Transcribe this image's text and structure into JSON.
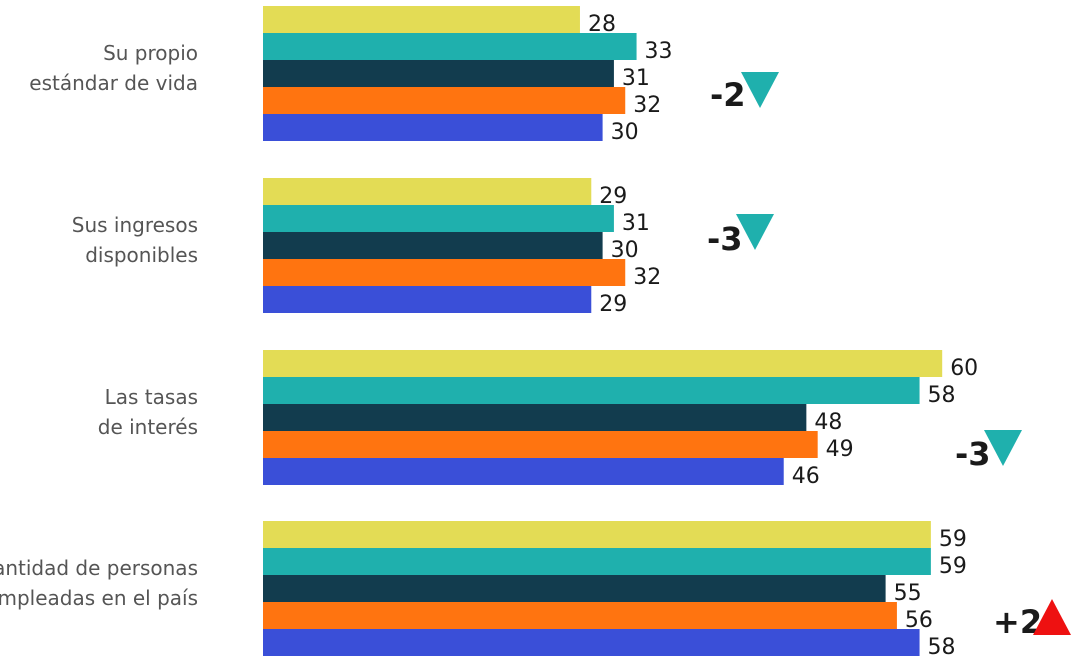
{
  "chart_data": {
    "type": "bar",
    "orientation": "horizontal",
    "categories": [
      [
        "Su propio",
        "estándar de vida"
      ],
      [
        "Sus ingresos",
        "disponibles"
      ],
      [
        "Las tasas",
        "de interés"
      ],
      [
        "La cantidad de personas",
        "empleadas en el país"
      ]
    ],
    "series": [
      {
        "color": "#e3dc55",
        "values": [
          28,
          29,
          60,
          59
        ]
      },
      {
        "color": "#1fb0ad",
        "values": [
          33,
          31,
          58,
          59
        ]
      },
      {
        "color": "#123c4e",
        "values": [
          31,
          30,
          48,
          55
        ]
      },
      {
        "color": "#ff7410",
        "values": [
          32,
          32,
          49,
          56
        ]
      },
      {
        "color": "#3a4fd8",
        "values": [
          30,
          29,
          46,
          58
        ]
      }
    ],
    "changes": [
      {
        "label": "-2",
        "direction": "down",
        "color": "#1fb0ad"
      },
      {
        "label": "-3",
        "direction": "down",
        "color": "#1fb0ad"
      },
      {
        "label": "-3",
        "direction": "down",
        "color": "#1fb0ad"
      },
      {
        "label": "+2",
        "direction": "up",
        "color": "#ee1111"
      }
    ],
    "grid": false,
    "legend": "none"
  }
}
